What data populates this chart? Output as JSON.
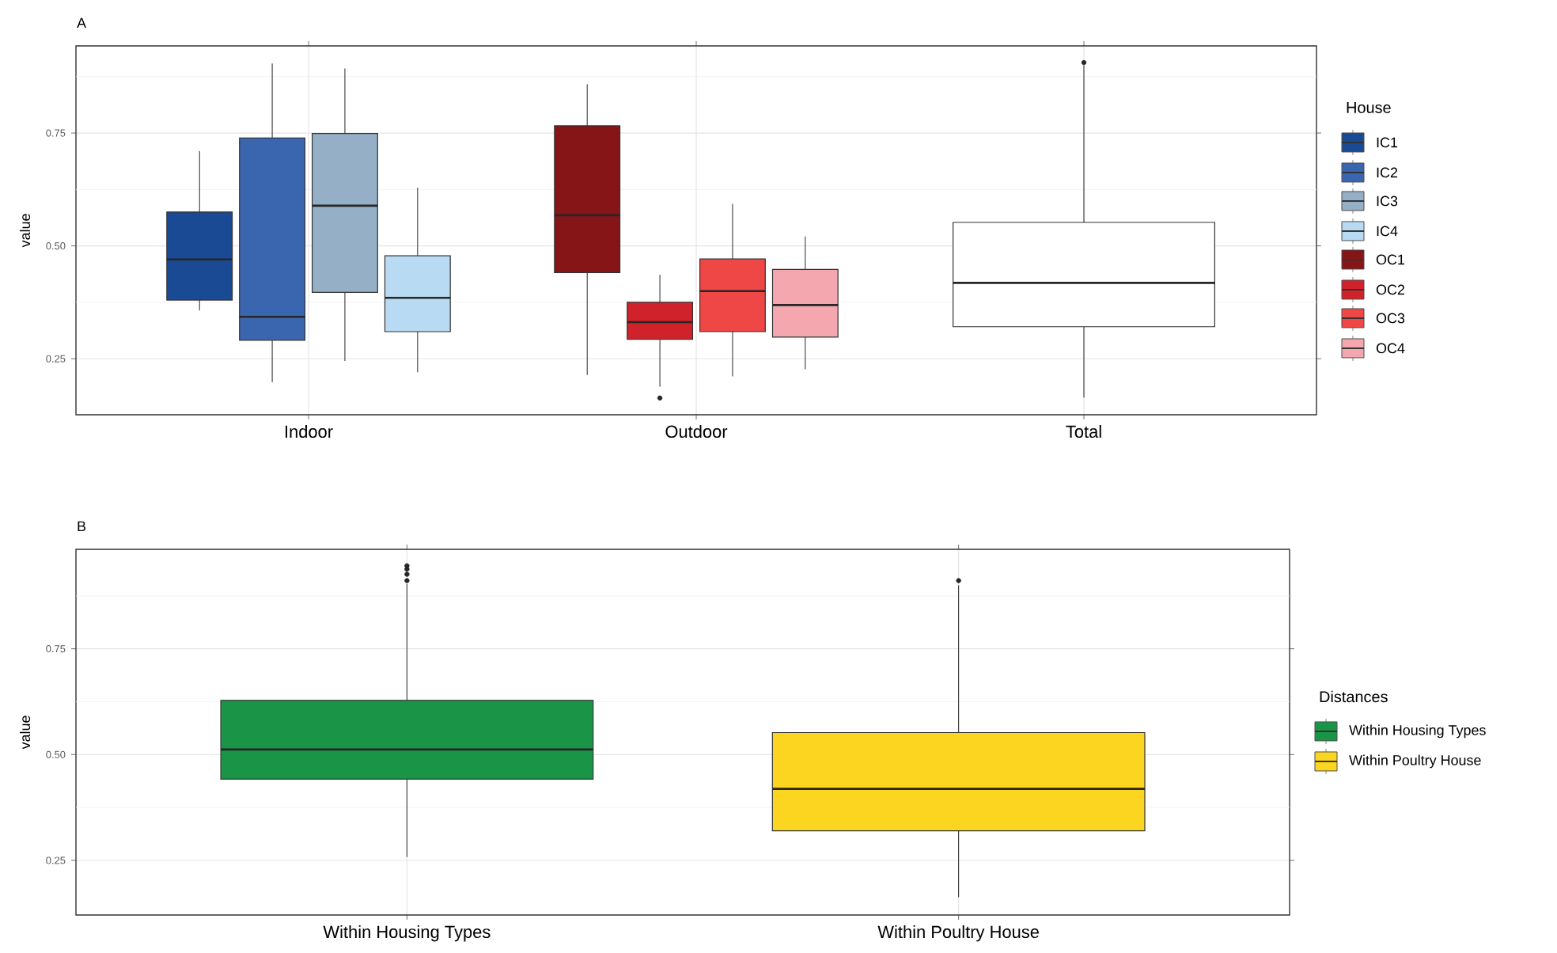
{
  "chart_data": [
    {
      "type": "box",
      "title": "A",
      "ylabel": "value",
      "categories": [
        "Indoor",
        "Outdoor",
        "Total"
      ],
      "legend_title": "House",
      "legend": "right",
      "grid": true,
      "ylim": [
        0.126,
        0.943
      ],
      "yticks": [
        {
          "value": 0.25,
          "label": "0.25"
        },
        {
          "value": 0.375,
          "label": null
        },
        {
          "value": 0.5,
          "label": "0.50"
        },
        {
          "value": 0.625,
          "label": null
        },
        {
          "value": 0.75,
          "label": "0.75"
        },
        {
          "value": 0.875,
          "label": null
        }
      ],
      "series": [
        {
          "name": "IC1",
          "color": "#1a4a94",
          "boxes": [
            {
              "low": 0.357,
              "q1": 0.38,
              "median": 0.47,
              "q3": 0.575,
              "high": 0.71
            },
            null,
            null
          ]
        },
        {
          "name": "IC2",
          "color": "#3a66b0",
          "boxes": [
            {
              "low": 0.198,
              "q1": 0.291,
              "median": 0.343,
              "q3": 0.739,
              "high": 0.904
            },
            null,
            null
          ]
        },
        {
          "name": "IC3",
          "color": "#94afc6",
          "boxes": [
            {
              "low": 0.245,
              "q1": 0.397,
              "median": 0.589,
              "q3": 0.749,
              "high": 0.893
            },
            null,
            null
          ]
        },
        {
          "name": "IC4",
          "color": "#b8daf2",
          "boxes": [
            {
              "low": 0.22,
              "q1": 0.31,
              "median": 0.385,
              "q3": 0.478,
              "high": 0.629
            },
            null,
            null
          ]
        },
        {
          "name": "OC1",
          "color": "#861518",
          "boxes": [
            null,
            {
              "low": 0.214,
              "q1": 0.441,
              "median": 0.568,
              "q3": 0.766,
              "high": 0.858
            },
            null
          ]
        },
        {
          "name": "OC2",
          "color": "#d0222a",
          "boxes": [
            null,
            {
              "low": 0.188,
              "q1": 0.293,
              "median": 0.331,
              "q3": 0.375,
              "high": 0.436,
              "outliers": [
                0.163
              ]
            },
            null
          ]
        },
        {
          "name": "OC3",
          "color": "#ef4746",
          "boxes": [
            null,
            {
              "low": 0.211,
              "q1": 0.31,
              "median": 0.4,
              "q3": 0.471,
              "high": 0.593
            },
            null
          ]
        },
        {
          "name": "OC4",
          "color": "#f5a7b0",
          "boxes": [
            null,
            {
              "low": 0.227,
              "q1": 0.298,
              "median": 0.369,
              "q3": 0.448,
              "high": 0.521
            },
            null
          ]
        },
        {
          "color": "#ffffff",
          "boxes": [
            null,
            null,
            {
              "low": 0.164,
              "q1": 0.321,
              "median": 0.418,
              "q3": 0.552,
              "high": 0.9,
              "outliers": [
                0.906
              ]
            }
          ]
        }
      ]
    },
    {
      "type": "box",
      "title": "B",
      "ylabel": "value",
      "categories": [
        "Within Housing Types",
        "Within Poultry House"
      ],
      "legend_title": "Distances",
      "legend": "right",
      "grid": true,
      "ylim": [
        0.121,
        0.985
      ],
      "yticks": [
        {
          "value": 0.25,
          "label": "0.25"
        },
        {
          "value": 0.375,
          "label": null
        },
        {
          "value": 0.5,
          "label": "0.50"
        },
        {
          "value": 0.625,
          "label": null
        },
        {
          "value": 0.75,
          "label": "0.75"
        },
        {
          "value": 0.875,
          "label": null
        }
      ],
      "series": [
        {
          "name": "Within Housing Types",
          "color": "#1a9548",
          "boxes": [
            {
              "low": 0.258,
              "q1": 0.442,
              "median": 0.512,
              "q3": 0.628,
              "high": 0.903,
              "outliers": [
                0.911,
                0.926,
                0.938,
                0.946
              ]
            },
            null
          ]
        },
        {
          "name": "Within Poultry House",
          "color": "#fcd520",
          "boxes": [
            null,
            {
              "low": 0.163,
              "q1": 0.32,
              "median": 0.419,
              "q3": 0.552,
              "high": 0.9,
              "outliers": [
                0.911
              ]
            }
          ]
        }
      ]
    }
  ]
}
